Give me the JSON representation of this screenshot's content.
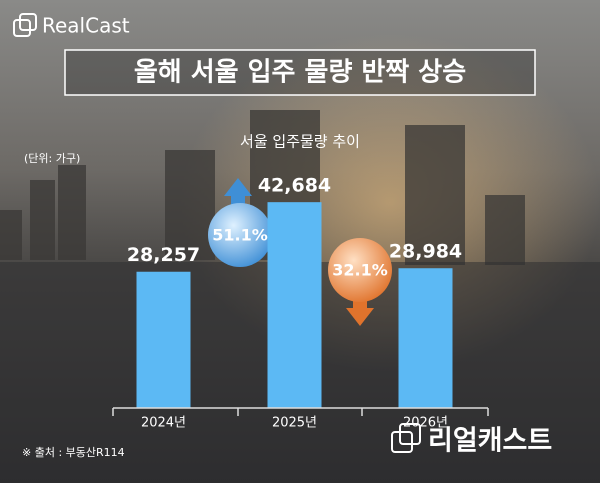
{
  "brand": "RealCast",
  "brand_korean": "리얼캐스트",
  "source": "※ 출처 : 부동산R114",
  "chart_data": {
    "type": "bar",
    "title": "올해 서울 입주 물량 반짝 상승",
    "subtitle": "서울 입주물량 추이",
    "unit": "(단위: 가구)",
    "categories": [
      "2024년",
      "2025년",
      "2026년"
    ],
    "values": [
      28257,
      42684,
      28984
    ],
    "value_labels": [
      "28,257",
      "42,684",
      "28,984"
    ],
    "color": "#5cb9f4",
    "ylim": [
      0,
      45000
    ],
    "annotations": [
      "51.1%",
      "32.1%"
    ]
  }
}
